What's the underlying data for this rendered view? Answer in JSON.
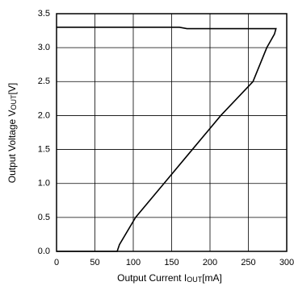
{
  "chart_data": {
    "type": "line",
    "xlabel": "Output Current I",
    "xlabel_sub": "OUT",
    "xlabel_end": "[mA]",
    "ylabel": "Output Voltage V",
    "ylabel_sub": "OUT",
    "ylabel_end": "[V]",
    "x": [
      0,
      160,
      170,
      286,
      284,
      279,
      274,
      256,
      214,
      177,
      140,
      103,
      82,
      79,
      0
    ],
    "series": [
      {
        "color": "#000000",
        "values": [
          3.3,
          3.3,
          3.28,
          3.28,
          3.2,
          3.1,
          3.0,
          2.5,
          2.0,
          1.5,
          1.0,
          0.5,
          0.1,
          0,
          0
        ]
      }
    ],
    "xlim": [
      0,
      300
    ],
    "xticks": [
      0,
      50,
      100,
      150,
      200,
      250,
      300
    ],
    "ylim": [
      0,
      3.5
    ],
    "yticks": [
      {
        "value": 0,
        "label": "0.0"
      },
      {
        "value": 0.5,
        "label": "0.5"
      },
      {
        "value": 1,
        "label": "1.0"
      },
      {
        "value": 1.5,
        "label": "1.5"
      },
      {
        "value": 2,
        "label": "2.0"
      },
      {
        "value": 2.5,
        "label": "2.5"
      },
      {
        "value": 3,
        "label": "3.0"
      },
      {
        "value": 3.5,
        "label": "3.5"
      }
    ],
    "grid": true
  }
}
